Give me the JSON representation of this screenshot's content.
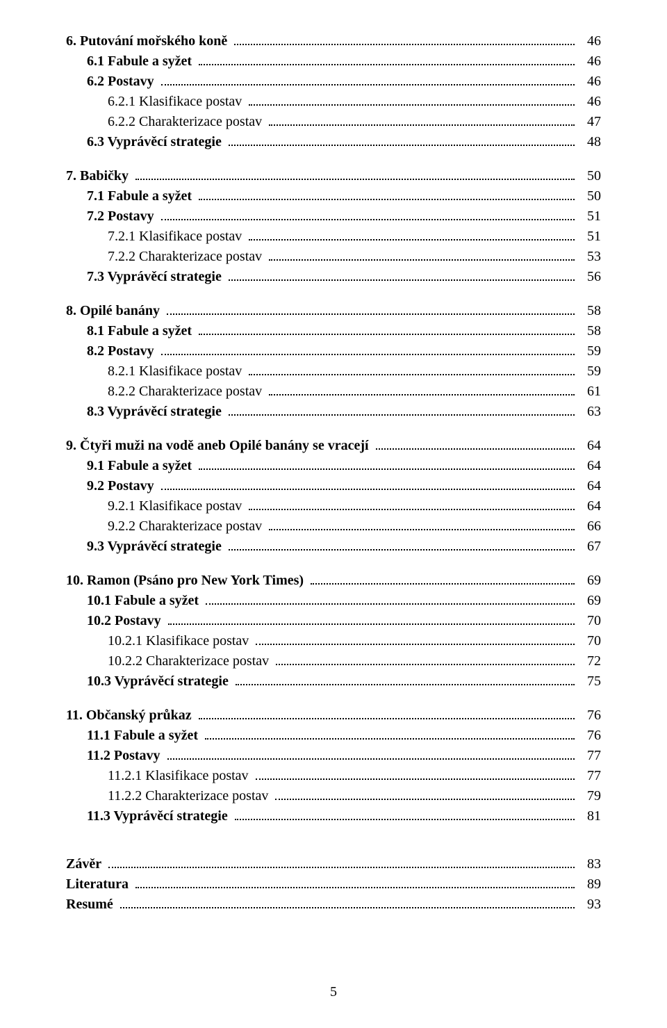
{
  "toc": [
    {
      "label": "6. Putování mořského koně",
      "page": "46",
      "bold": true,
      "indent": 0
    },
    {
      "label": "6.1 Fabule a syžet",
      "page": "46",
      "bold": true,
      "indent": 1
    },
    {
      "label": "6.2 Postavy",
      "page": "46",
      "bold": true,
      "indent": 1
    },
    {
      "label": "6.2.1 Klasifikace postav",
      "page": "46",
      "bold": false,
      "indent": 2
    },
    {
      "label": "6.2.2 Charakterizace postav",
      "page": "47",
      "bold": false,
      "indent": 2
    },
    {
      "label": "6.3 Vyprávěcí strategie",
      "page": "48",
      "bold": true,
      "indent": 1
    },
    {
      "gap": true
    },
    {
      "label": "7. Babičky",
      "page": "50",
      "bold": true,
      "indent": 0
    },
    {
      "label": "7.1 Fabule a syžet",
      "page": "50",
      "bold": true,
      "indent": 1
    },
    {
      "label": "7.2 Postavy",
      "page": "51",
      "bold": true,
      "indent": 1
    },
    {
      "label": "7.2.1 Klasifikace postav",
      "page": "51",
      "bold": false,
      "indent": 2
    },
    {
      "label": "7.2.2 Charakterizace postav",
      "page": "53",
      "bold": false,
      "indent": 2
    },
    {
      "label": "7.3 Vyprávěcí strategie",
      "page": "56",
      "bold": true,
      "indent": 1
    },
    {
      "gap": true
    },
    {
      "label": "8. Opilé banány",
      "page": "58",
      "bold": true,
      "indent": 0
    },
    {
      "label": "8.1 Fabule a syžet",
      "page": "58",
      "bold": true,
      "indent": 1
    },
    {
      "label": "8.2 Postavy",
      "page": "59",
      "bold": true,
      "indent": 1
    },
    {
      "label": "8.2.1 Klasifikace postav",
      "page": "59",
      "bold": false,
      "indent": 2
    },
    {
      "label": "8.2.2 Charakterizace postav",
      "page": "61",
      "bold": false,
      "indent": 2
    },
    {
      "label": "8.3 Vyprávěcí strategie",
      "page": "63",
      "bold": true,
      "indent": 1
    },
    {
      "gap": true
    },
    {
      "label": "9. Čtyři muži na vodě aneb Opilé banány se vracejí",
      "page": "64",
      "bold": true,
      "indent": 0
    },
    {
      "label": "9.1 Fabule a syžet",
      "page": "64",
      "bold": true,
      "indent": 1
    },
    {
      "label": "9.2 Postavy",
      "page": "64",
      "bold": true,
      "indent": 1
    },
    {
      "label": "9.2.1 Klasifikace postav",
      "page": "64",
      "bold": false,
      "indent": 2
    },
    {
      "label": "9.2.2 Charakterizace postav",
      "page": "66",
      "bold": false,
      "indent": 2
    },
    {
      "label": "9.3 Vyprávěcí strategie",
      "page": "67",
      "bold": true,
      "indent": 1
    },
    {
      "gap": true
    },
    {
      "label": "10. Ramon (Psáno pro New York Times)",
      "page": "69",
      "bold": true,
      "indent": 0
    },
    {
      "label": "10.1 Fabule a syžet",
      "page": "69",
      "bold": true,
      "indent": 1
    },
    {
      "label": "10.2 Postavy",
      "page": "70",
      "bold": true,
      "indent": 1
    },
    {
      "label": "10.2.1 Klasifikace postav",
      "page": "70",
      "bold": false,
      "indent": 2
    },
    {
      "label": "10.2.2 Charakterizace postav",
      "page": "72",
      "bold": false,
      "indent": 2
    },
    {
      "label": "10.3 Vyprávěcí strategie",
      "page": "75",
      "bold": true,
      "indent": 1
    },
    {
      "gap": true
    },
    {
      "label": "11. Občanský průkaz",
      "page": "76",
      "bold": true,
      "indent": 0
    },
    {
      "label": "11.1 Fabule a syžet",
      "page": "76",
      "bold": true,
      "indent": 1
    },
    {
      "label": "11.2 Postavy",
      "page": "77",
      "bold": true,
      "indent": 1
    },
    {
      "label": "11.2.1 Klasifikace postav",
      "page": "77",
      "bold": false,
      "indent": 2
    },
    {
      "label": "11.2.2 Charakterizace postav",
      "page": "79",
      "bold": false,
      "indent": 2
    },
    {
      "label": "11.3 Vyprávěcí strategie",
      "page": "81",
      "bold": true,
      "indent": 1
    },
    {
      "gap": true
    },
    {
      "gap": true
    },
    {
      "label": "Závěr",
      "page": "83",
      "bold": true,
      "indent": 0
    },
    {
      "label": "Literatura",
      "page": "89",
      "bold": true,
      "indent": 0
    },
    {
      "label": "Resumé",
      "page": "93",
      "bold": true,
      "indent": 0
    }
  ],
  "page_number": "5"
}
